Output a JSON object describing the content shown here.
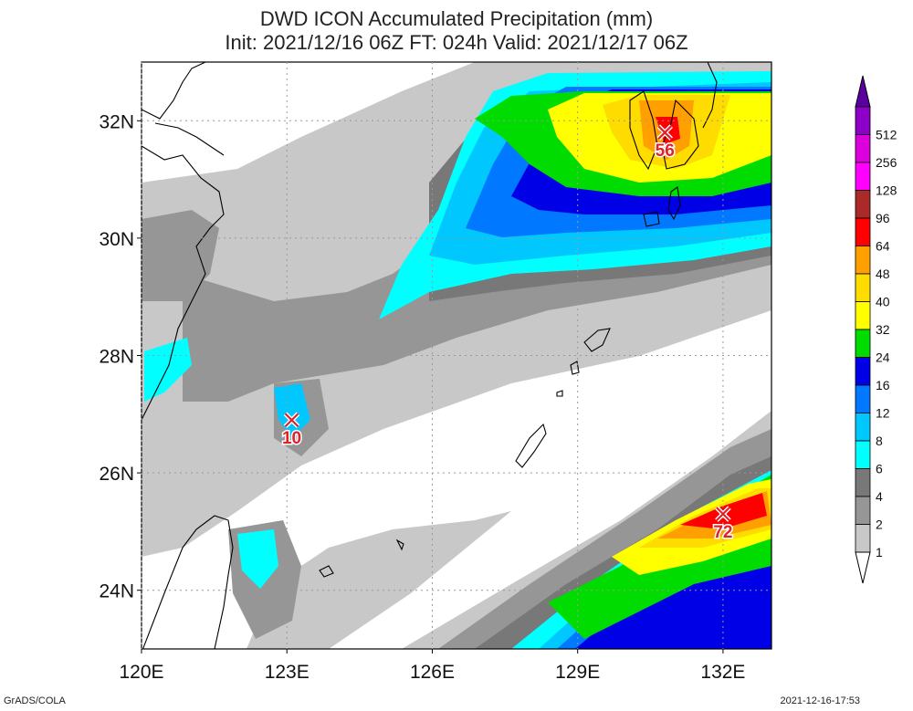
{
  "title": {
    "line1": "DWD ICON Accumulated Precipitation (mm)",
    "line2": "Init: 2021/12/16 06Z  FT: 024h  Valid: 2021/12/17 06Z"
  },
  "axes": {
    "lon_range": [
      120,
      133
    ],
    "lat_range": [
      23,
      33
    ],
    "x_ticks": [
      "120E",
      "123E",
      "126E",
      "129E",
      "132E"
    ],
    "x_tick_values": [
      120,
      123,
      126,
      129,
      132
    ],
    "y_ticks": [
      "24N",
      "26N",
      "28N",
      "30N",
      "32N"
    ],
    "y_tick_values": [
      24,
      26,
      28,
      30,
      32
    ],
    "grid": "dotted"
  },
  "colorbar": {
    "levels": [
      "1",
      "2",
      "4",
      "6",
      "8",
      "12",
      "16",
      "24",
      "32",
      "40",
      "48",
      "64",
      "96",
      "128",
      "256",
      "512"
    ],
    "colors": [
      "#c8c8c8",
      "#969696",
      "#787878",
      "#00ffff",
      "#00c8ff",
      "#0078ff",
      "#0000e6",
      "#00dc00",
      "#ffff00",
      "#ffdc00",
      "#ffa000",
      "#ff0000",
      "#aa2a2a",
      "#ff00ff",
      "#dc00dc",
      "#8c00c8",
      "#5a00a0"
    ],
    "placement": "right"
  },
  "maxima": [
    {
      "label": "56",
      "lon": 130.8,
      "lat": 31.8
    },
    {
      "label": "10",
      "lon": 123.1,
      "lat": 26.9
    },
    {
      "label": "72",
      "lon": 132.0,
      "lat": 25.3
    }
  ],
  "footer": {
    "credit": "GrADS/COLA",
    "timestamp": "2021-12-16-17:53"
  }
}
